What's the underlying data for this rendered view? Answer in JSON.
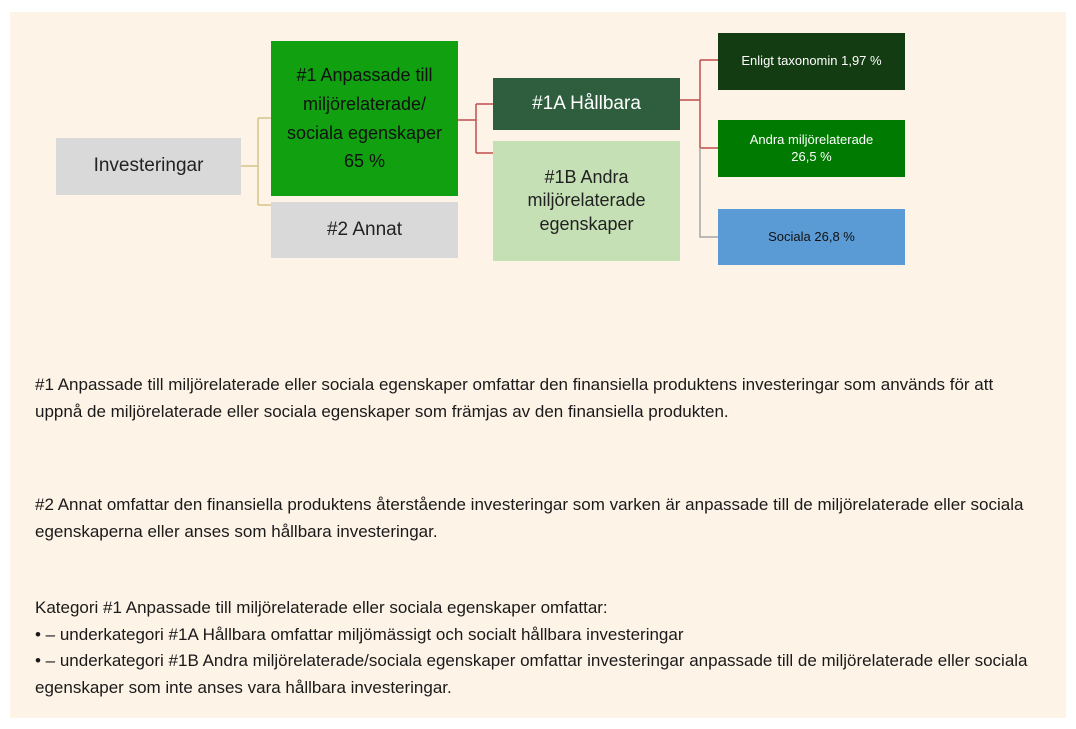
{
  "nodes": [
    {
      "id": "inv",
      "label": "Investeringar"
    },
    {
      "id": "n1",
      "label": "#1 Anpassade till miljörelaterade/ sociala egenskaper 65 %"
    },
    {
      "id": "n2",
      "label": "#2 Annat"
    },
    {
      "id": "n1a",
      "label": "#1A Hållbara"
    },
    {
      "id": "n1b",
      "label": "#1B Andra miljörelaterade egenskaper"
    },
    {
      "id": "tax",
      "label": "Enligt taxonomin 1,97 %"
    },
    {
      "id": "env",
      "label": "Andra miljörelaterade 26,5 %"
    },
    {
      "id": "soc",
      "label": "Sociala 26,8 %"
    }
  ],
  "text": {
    "paragraph1": "#1 Anpassade till miljörelaterade eller sociala egenskaper omfattar den finansiella produktens investeringar som används för att uppnå de miljörelaterade eller sociala egenskaper som främjas av den finansiella produkten.",
    "paragraph2": "#2 Annat omfattar den finansiella produktens återstående investeringar som varken är anpassade till de miljörelaterade eller sociala egenskaperna eller anses som hållbara investeringar.",
    "paragraph3": "Kategori #1 Anpassade till miljörelaterade eller sociala egenskaper omfattar:",
    "bullets": [
      "• – underkategori #1A Hållbara omfattar miljömässigt och socialt hållbara investeringar",
      "• – underkategori #1B Andra miljörelaterade/sociala egenskaper omfattar investeringar anpassade till de miljörelaterade eller sociala egenskaper som inte anses vara hållbara investeringar."
    ]
  }
}
